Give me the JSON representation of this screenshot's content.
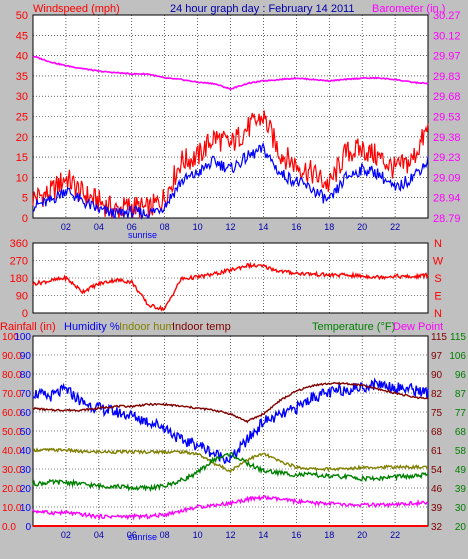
{
  "header": {
    "left_label": "Windspeed (mph)",
    "title": "24 hour graph day : February 14 2011",
    "right_label": "Barometer (in.)"
  },
  "colors": {
    "background": "#c0c0c0",
    "plot": "#ffffff",
    "wind": "#ff0000",
    "gust_avg": "#0000ff",
    "barometer": "#ff00ff",
    "direction": "#ff0000",
    "humidity": "#0000ff",
    "indoor_hum": "#808000",
    "indoor_temp": "#800000",
    "temperature": "#008000",
    "dew_point": "#ff00ff",
    "rainfall": "#ff0000"
  },
  "sunrise_label": "sunrise",
  "x_ticks": [
    "02",
    "04",
    "06",
    "08",
    "10",
    "12",
    "14",
    "16",
    "18",
    "20",
    "22"
  ],
  "panel3_labels": {
    "rainfall": "Rainfall (in)",
    "humidity": "Humidity %",
    "indoor_hum": "Indoor hum",
    "indoor_temp": "Indoor temp",
    "temperature": "Temperature (°F)",
    "dew_point": "Dew Point"
  },
  "chart_data": [
    {
      "type": "line",
      "x": [
        0,
        1,
        2,
        3,
        4,
        5,
        6,
        7,
        8,
        9,
        10,
        11,
        12,
        13,
        14,
        15,
        16,
        17,
        18,
        19,
        20,
        21,
        22,
        23,
        24
      ],
      "ylim": [
        0,
        50
      ],
      "y_ticks": [
        "0",
        "5",
        "10",
        "15",
        "20",
        "25",
        "30",
        "35",
        "40",
        "45",
        "50"
      ],
      "y2lim": [
        28.79,
        30.27
      ],
      "y2_ticks": [
        "28.79",
        "28.94",
        "29.09",
        "29.23",
        "29.38",
        "29.53",
        "29.68",
        "29.83",
        "29.97",
        "30.12",
        "30.27"
      ],
      "series": [
        {
          "key": "wind",
          "values": [
            5,
            6,
            10,
            6,
            4,
            2,
            3,
            2,
            5,
            14,
            15,
            20,
            18,
            22,
            25,
            16,
            13,
            11,
            8,
            16,
            17,
            15,
            12,
            14,
            22
          ]
        },
        {
          "key": "gust_avg",
          "values": [
            3,
            4,
            7,
            4,
            2,
            1,
            1.5,
            1,
            3,
            9,
            11,
            14,
            12,
            15,
            17,
            11,
            9,
            7,
            4,
            10,
            12,
            11,
            7,
            10,
            14
          ]
        },
        {
          "key": "barometer",
          "values": [
            29.97,
            29.93,
            29.9,
            29.88,
            29.86,
            29.85,
            29.84,
            29.84,
            29.81,
            29.8,
            29.78,
            29.77,
            29.73,
            29.77,
            29.79,
            29.8,
            29.81,
            29.8,
            29.79,
            29.8,
            29.81,
            29.81,
            29.8,
            29.78,
            29.77
          ]
        }
      ]
    },
    {
      "type": "line",
      "ylim": [
        0,
        360
      ],
      "y_ticks": [
        "0",
        "90",
        "180",
        "270",
        "360"
      ],
      "y2_ticks": [
        "N",
        "E",
        "S",
        "W",
        "N"
      ],
      "series": [
        {
          "key": "direction",
          "values": [
            150,
            165,
            180,
            110,
            150,
            170,
            160,
            40,
            20,
            175,
            185,
            200,
            220,
            245,
            240,
            215,
            205,
            200,
            195,
            195,
            190,
            185,
            190,
            185,
            195
          ]
        }
      ]
    },
    {
      "type": "line",
      "ylim": [
        0,
        100
      ],
      "y_ticks": [
        "0.0",
        "10.0",
        "20.0",
        "30.0",
        "40.0",
        "50.0",
        "60.0",
        "70.0",
        "80.0",
        "90.0",
        "100"
      ],
      "y_inner_ticks": [
        "0",
        "10",
        "20",
        "30",
        "40",
        "50",
        "60",
        "70",
        "80",
        "90",
        "100"
      ],
      "y2_ticks": [
        "32",
        "39",
        "46",
        "54",
        "61",
        "68",
        "75",
        "82",
        "90",
        "97",
        "115"
      ],
      "y3_ticks": [
        "20",
        "30",
        "39",
        "49",
        "58",
        "68",
        "77",
        "87",
        "96",
        "106",
        "115"
      ],
      "series": [
        {
          "key": "humidity",
          "values": [
            70,
            68,
            72,
            65,
            62,
            60,
            58,
            55,
            52,
            45,
            43,
            38,
            35,
            45,
            55,
            58,
            62,
            68,
            70,
            72,
            73,
            75,
            73,
            72,
            70
          ]
        },
        {
          "key": "indoor_hum",
          "values": [
            40,
            40,
            40,
            39,
            39,
            39,
            39,
            39,
            39,
            39,
            38,
            33,
            29,
            35,
            38,
            34,
            31,
            30,
            30,
            30,
            31,
            31,
            31,
            31,
            31
          ]
        },
        {
          "key": "indoor_temp",
          "values": [
            62,
            61,
            61,
            61,
            62,
            63,
            63,
            64,
            64,
            63,
            62,
            61,
            59,
            55,
            59,
            66,
            71,
            74,
            75,
            75,
            74,
            72,
            70,
            68,
            67
          ]
        },
        {
          "key": "temperature",
          "values": [
            22,
            23,
            23,
            22,
            21,
            21,
            20,
            20,
            21,
            24,
            28,
            35,
            38,
            33,
            29,
            28,
            27,
            27,
            26,
            26,
            25,
            25,
            26,
            26,
            27
          ]
        },
        {
          "key": "dew_point",
          "values": [
            8,
            7,
            7,
            6,
            5,
            5,
            5,
            5,
            6,
            8,
            10,
            11,
            12,
            14,
            15,
            14,
            13,
            12,
            12,
            11,
            11,
            11,
            11,
            12,
            12
          ]
        },
        {
          "key": "rainfall",
          "values": [
            0,
            0,
            0,
            0,
            0,
            0,
            0,
            0,
            0,
            0,
            0,
            0,
            0,
            0,
            0,
            0,
            0,
            0,
            0,
            0,
            0,
            0,
            0,
            0,
            0
          ]
        }
      ]
    }
  ]
}
